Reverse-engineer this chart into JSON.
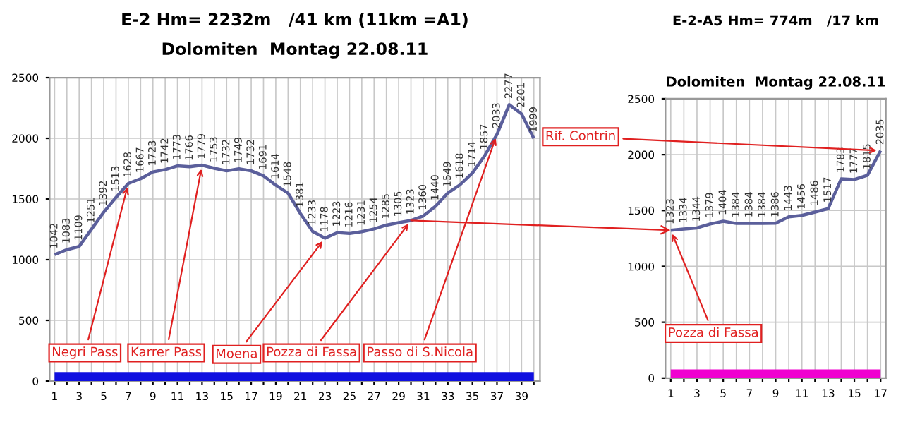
{
  "chart_data": [
    {
      "type": "line",
      "title": "E-2 Hm= 2232m   /41 km (11km =A1)",
      "subtitle": "Dolomiten  Montag 22.08.11",
      "x": [
        1,
        2,
        3,
        4,
        5,
        6,
        7,
        8,
        9,
        10,
        11,
        12,
        13,
        14,
        15,
        16,
        17,
        18,
        19,
        20,
        21,
        22,
        23,
        24,
        25,
        26,
        27,
        28,
        29,
        30,
        31,
        32,
        33,
        34,
        35,
        36,
        37,
        38,
        39,
        40
      ],
      "series": [
        {
          "color": "#5b5f9b",
          "values": [
            1042,
            1083,
            1109,
            1251,
            1392,
            1513,
            1628,
            1667,
            1723,
            1742,
            1773,
            1766,
            1779,
            1753,
            1732,
            1749,
            1732,
            1691,
            1614,
            1548,
            1381,
            1233,
            1178,
            1223,
            1216,
            1231,
            1254,
            1285,
            1305,
            1323,
            1360,
            1440,
            1549,
            1618,
            1714,
            1857,
            2033,
            2277,
            2201,
            1999
          ],
          "data_labels": true
        },
        {
          "color": "#1010e0",
          "values": [
            25,
            25,
            25,
            25,
            25,
            25,
            25,
            25,
            25,
            25,
            25,
            25,
            25,
            25,
            25,
            25,
            25,
            25,
            25,
            25,
            25,
            25,
            25,
            25,
            25,
            25,
            25,
            25,
            25,
            25,
            25,
            25,
            25,
            25,
            25,
            25,
            25,
            25,
            25,
            25
          ]
        }
      ],
      "xlim": [
        0.6,
        40.5
      ],
      "ylim": [
        0,
        2500
      ],
      "yticks": [
        0,
        500,
        1000,
        1500,
        2000,
        2500
      ],
      "xticks": [
        1,
        {
          "value": 2,
          "label": null
        },
        3,
        {
          "value": 4,
          "label": null
        },
        5,
        {
          "value": 6,
          "label": null
        },
        7,
        {
          "value": 8,
          "label": null
        },
        9,
        {
          "value": 10,
          "label": null
        },
        11,
        {
          "value": 12,
          "label": null
        },
        13,
        {
          "value": 14,
          "label": null
        },
        15,
        {
          "value": 16,
          "label": null
        },
        17,
        {
          "value": 18,
          "label": null
        },
        19,
        {
          "value": 20,
          "label": null
        },
        21,
        {
          "value": 22,
          "label": null
        },
        23,
        {
          "value": 24,
          "label": null
        },
        25,
        {
          "value": 26,
          "label": null
        },
        27,
        {
          "value": 28,
          "label": null
        },
        29,
        {
          "value": 30,
          "label": null
        },
        31,
        {
          "value": 32,
          "label": null
        },
        33,
        {
          "value": 34,
          "label": null
        },
        35,
        {
          "value": 36,
          "label": null
        },
        37,
        {
          "value": 38,
          "label": null
        },
        39,
        {
          "value": 40,
          "label": null
        }
      ],
      "grid": true,
      "legend": false,
      "annotations": [
        {
          "text": "Negri Pass",
          "x": 7,
          "y": 1628
        },
        {
          "text": "Karrer Pass",
          "x": 13,
          "y": 1779
        },
        {
          "text": "Moena",
          "x": 23,
          "y": 1178
        },
        {
          "text": "Pozza di Fassa",
          "x": 30,
          "y": 1323
        },
        {
          "text": "Passo di S.Nicola",
          "x": 37,
          "y": 2033
        }
      ]
    },
    {
      "type": "line",
      "title": "E-2-A5 Hm= 774m   /17 km",
      "subtitle": "Dolomiten  Montag 22.08.11",
      "x": [
        1,
        2,
        3,
        4,
        5,
        6,
        7,
        8,
        9,
        10,
        11,
        12,
        13,
        14,
        15,
        16,
        17
      ],
      "series": [
        {
          "color": "#5b5f9b",
          "values": [
            1323,
            1334,
            1344,
            1379,
            1404,
            1384,
            1384,
            1384,
            1386,
            1443,
            1456,
            1486,
            1517,
            1783,
            1777,
            1815,
            2035
          ],
          "data_labels": true
        },
        {
          "color": "#f000d0",
          "values": [
            25,
            25,
            25,
            25,
            25,
            25,
            25,
            25,
            25,
            25,
            25,
            25,
            25,
            25,
            25,
            25,
            25
          ]
        }
      ],
      "xlim": [
        0.6,
        17.4
      ],
      "ylim": [
        0,
        2500
      ],
      "yticks": [
        0,
        500,
        1000,
        1500,
        2000,
        2500
      ],
      "xticks": [
        1,
        {
          "value": 2,
          "label": null
        },
        3,
        {
          "value": 4,
          "label": null
        },
        5,
        {
          "value": 6,
          "label": null
        },
        7,
        {
          "value": 8,
          "label": null
        },
        9,
        {
          "value": 10,
          "label": null
        },
        11,
        {
          "value": 12,
          "label": null
        },
        13,
        {
          "value": 14,
          "label": null
        },
        15,
        {
          "value": 16,
          "label": null
        },
        17
      ],
      "grid": true,
      "legend": false,
      "annotations": [
        {
          "text": "Pozza di Fassa",
          "x": 1,
          "y": 1323
        },
        {
          "text": "Rif. Contrin",
          "x": 17,
          "y": 2035
        }
      ]
    }
  ]
}
